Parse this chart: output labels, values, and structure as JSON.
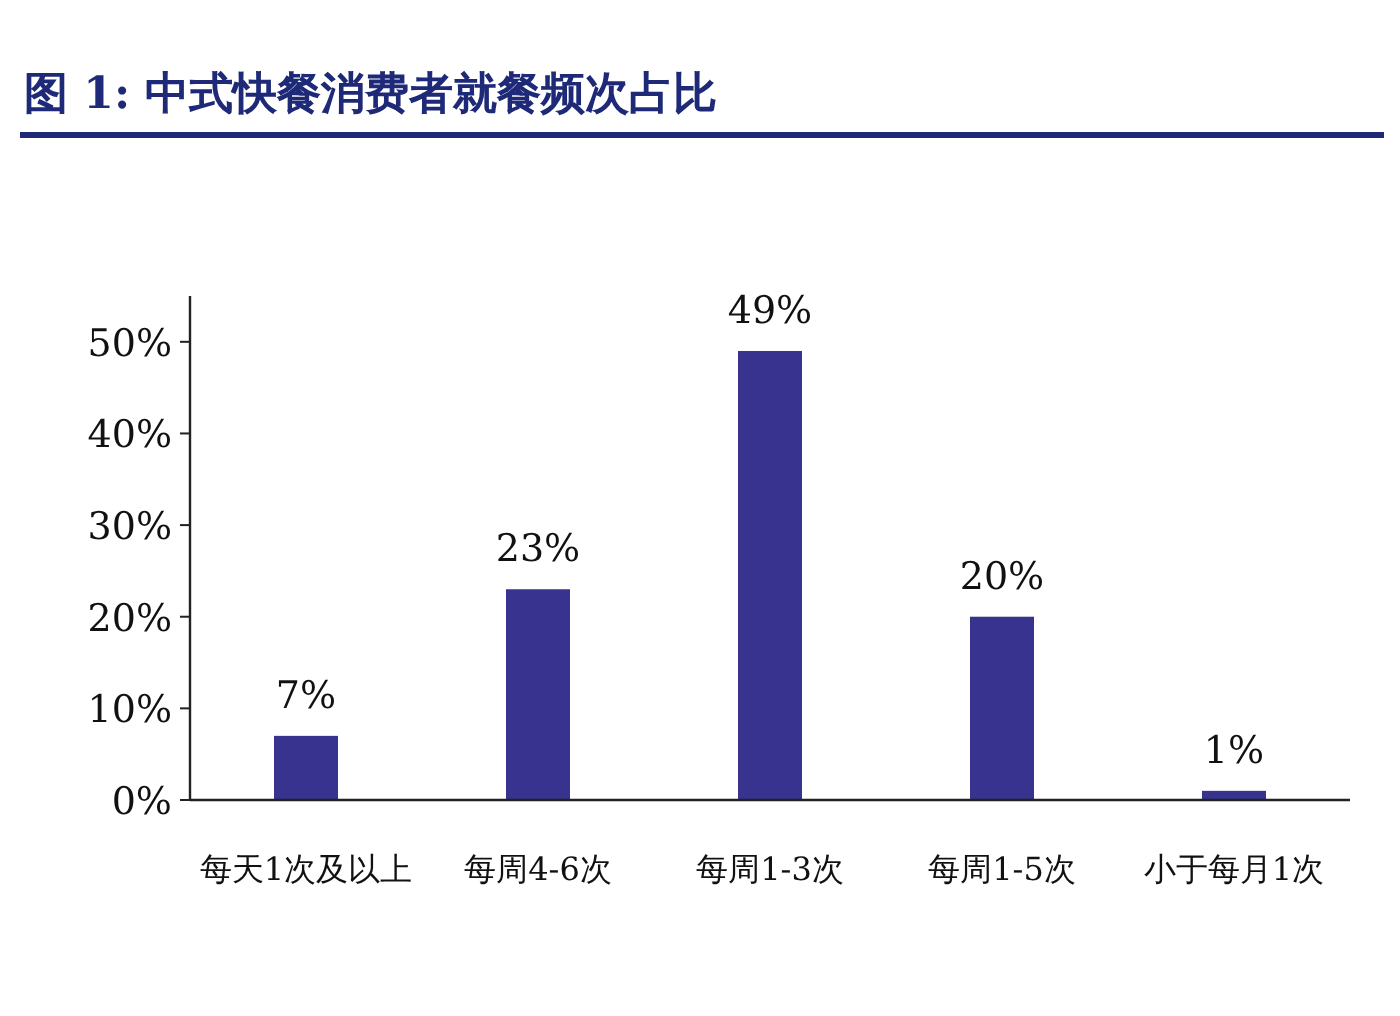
{
  "chart_data": {
    "type": "bar",
    "title": "图 1:  中式快餐消费者就餐频次占比",
    "categories": [
      "每天1次及以上",
      "每周4-6次",
      "每周1-3次",
      "每周1-5次",
      "小于每月1次"
    ],
    "values": [
      7,
      23,
      49,
      20,
      1
    ],
    "value_labels": [
      "7%",
      "23%",
      "49%",
      "20%",
      "1%"
    ],
    "color": "#37338f",
    "ylim": [
      0,
      55
    ],
    "yticks": [
      {
        "value": 0,
        "label": "0%"
      },
      {
        "value": 10,
        "label": "10%"
      },
      {
        "value": 20,
        "label": "20%"
      },
      {
        "value": 30,
        "label": "30%"
      },
      {
        "value": 40,
        "label": "40%"
      },
      {
        "value": 50,
        "label": "50%"
      }
    ],
    "grid": false
  }
}
